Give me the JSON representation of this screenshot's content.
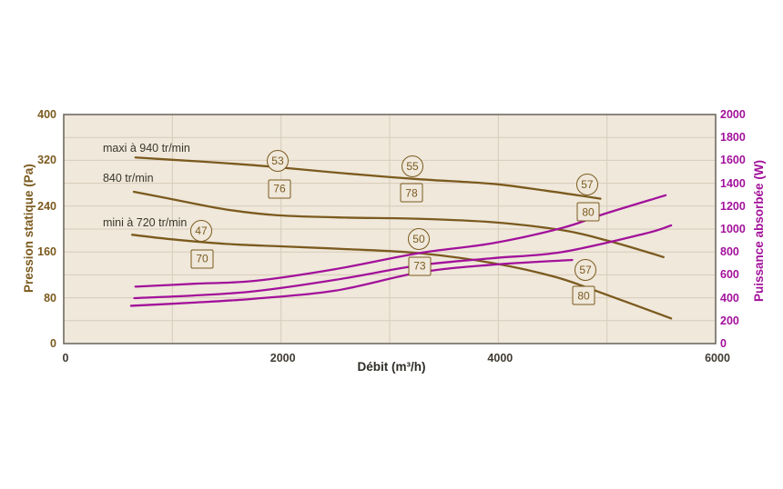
{
  "chart_data": {
    "type": "line",
    "title": "",
    "xlabel": "Débit (m³/h)",
    "ylabel_left": "Pression statique (Pa)",
    "ylabel_right": "Puissance absorbée (W)",
    "xlim": [
      0,
      6000
    ],
    "ylim_left": [
      0,
      400
    ],
    "ylim_right": [
      0,
      2000
    ],
    "x_ticks": [
      0,
      2000,
      4000,
      6000
    ],
    "x_gridlines": [
      1000,
      2000,
      3000,
      4000,
      5000
    ],
    "y_ticks_left": [
      0,
      80,
      160,
      240,
      320,
      400
    ],
    "y_ticks_right": [
      0,
      200,
      400,
      600,
      800,
      1000,
      1200,
      1400,
      1600,
      1800,
      2000
    ],
    "pa_gridlines": [
      40,
      80,
      120,
      160,
      200,
      240,
      280,
      320,
      360
    ],
    "grid": true,
    "legend_position": "curve-labels-inline",
    "colors": {
      "pressure_curve": "#7b5a1e",
      "power_curve": "#a2119a",
      "left_axis_text": "#7b5a1e",
      "right_axis_text": "#a2119a",
      "x_axis_text": "#403b33",
      "plot_background": "#efe8db",
      "gridline": "#d8cbba",
      "plot_border": "#6f6b62",
      "annotation_outline": "#7b5a1e",
      "curve_label_text": "#3b362c"
    },
    "series": [
      {
        "name": "pression maxi à 940 tr/min",
        "axis": "left",
        "unit": "Pa",
        "color": "#7b5a1e",
        "points": [
          [
            660,
            325
          ],
          [
            1000,
            321
          ],
          [
            1500,
            315
          ],
          [
            1970,
            308
          ],
          [
            2600,
            297
          ],
          [
            3270,
            287
          ],
          [
            3940,
            279
          ],
          [
            4440,
            267
          ],
          [
            4940,
            253
          ]
        ]
      },
      {
        "name": "pression 840 tr/min",
        "axis": "left",
        "unit": "Pa",
        "color": "#7b5a1e",
        "points": [
          [
            645,
            265
          ],
          [
            1000,
            252
          ],
          [
            1500,
            234
          ],
          [
            1970,
            224
          ],
          [
            2600,
            220
          ],
          [
            3270,
            218
          ],
          [
            3940,
            212
          ],
          [
            4590,
            198
          ],
          [
            5000,
            180
          ],
          [
            5350,
            161
          ],
          [
            5520,
            151
          ]
        ]
      },
      {
        "name": "pression mini à 720 tr/min",
        "axis": "left",
        "unit": "Pa",
        "color": "#7b5a1e",
        "points": [
          [
            630,
            190
          ],
          [
            1000,
            182
          ],
          [
            1500,
            174
          ],
          [
            1970,
            170
          ],
          [
            2600,
            165
          ],
          [
            3270,
            158
          ],
          [
            3940,
            141
          ],
          [
            4530,
            116
          ],
          [
            5000,
            85
          ],
          [
            5590,
            44
          ]
        ]
      },
      {
        "name": "puissance 940 tr/min",
        "axis": "right",
        "unit": "W",
        "color": "#a2119a",
        "points": [
          [
            660,
            497
          ],
          [
            1200,
            522
          ],
          [
            1760,
            548
          ],
          [
            2500,
            650
          ],
          [
            3270,
            790
          ],
          [
            3940,
            875
          ],
          [
            4590,
            1010
          ],
          [
            5000,
            1140
          ],
          [
            5540,
            1295
          ]
        ]
      },
      {
        "name": "puissance 840 tr/min",
        "axis": "right",
        "unit": "W",
        "color": "#a2119a",
        "points": [
          [
            650,
            397
          ],
          [
            1200,
            420
          ],
          [
            1760,
            457
          ],
          [
            2500,
            556
          ],
          [
            3270,
            683
          ],
          [
            3940,
            745
          ],
          [
            4590,
            800
          ],
          [
            5350,
            960
          ],
          [
            5590,
            1032
          ]
        ]
      },
      {
        "name": "puissance 720 tr/min",
        "axis": "right",
        "unit": "W",
        "color": "#a2119a",
        "points": [
          [
            620,
            330
          ],
          [
            1200,
            358
          ],
          [
            1760,
            392
          ],
          [
            2500,
            462
          ],
          [
            3270,
            620
          ],
          [
            3940,
            688
          ],
          [
            4680,
            730
          ]
        ]
      }
    ],
    "curve_labels": [
      {
        "text": "maxi à 940 tr/min",
        "flow": 360,
        "pa": 341
      },
      {
        "text": "840 tr/min",
        "flow": 360,
        "pa": 289
      },
      {
        "text": "mini à 720 tr/min",
        "flow": 360,
        "pa": 211
      }
    ],
    "annotations": [
      {
        "shape": "circle",
        "value": "53",
        "flow": 1969,
        "pa": 319
      },
      {
        "shape": "box",
        "value": "76",
        "flow": 1986,
        "pa": 270
      },
      {
        "shape": "circle",
        "value": "55",
        "flow": 3210,
        "pa": 310
      },
      {
        "shape": "box",
        "value": "78",
        "flow": 3201,
        "pa": 263
      },
      {
        "shape": "circle",
        "value": "57",
        "flow": 4818,
        "pa": 278
      },
      {
        "shape": "box",
        "value": "80",
        "flow": 4827,
        "pa": 230
      },
      {
        "shape": "circle",
        "value": "47",
        "flow": 1265,
        "pa": 197
      },
      {
        "shape": "box",
        "value": "70",
        "flow": 1274,
        "pa": 148
      },
      {
        "shape": "circle",
        "value": "50",
        "flow": 3268,
        "pa": 183
      },
      {
        "shape": "box",
        "value": "73",
        "flow": 3276,
        "pa": 135
      },
      {
        "shape": "circle",
        "value": "57",
        "flow": 4802,
        "pa": 129
      },
      {
        "shape": "box",
        "value": "80",
        "flow": 4785,
        "pa": 84
      }
    ]
  }
}
